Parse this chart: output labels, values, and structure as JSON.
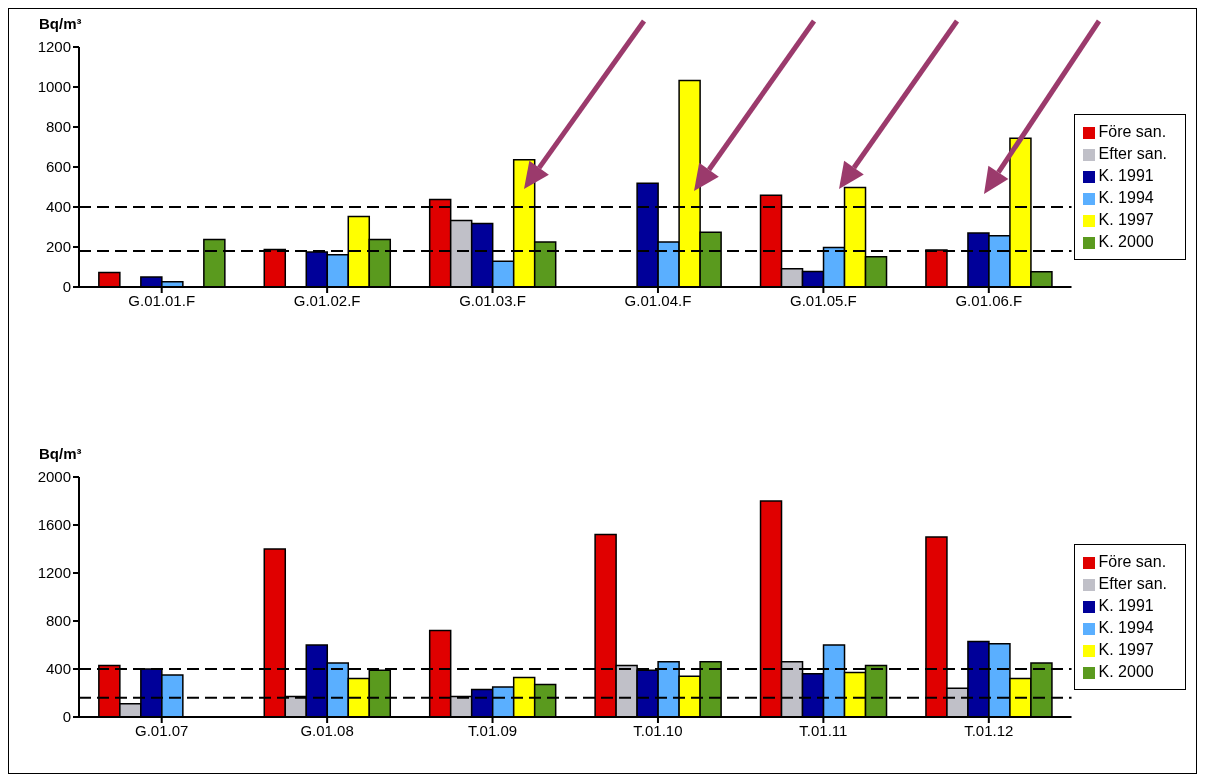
{
  "chart_data": [
    {
      "type": "bar",
      "ylabel": "Bq/m³",
      "categories": [
        "G.01.01.F",
        "G.01.02.F",
        "G.01.03.F",
        "G.01.04.F",
        "G.01.05.F",
        "G.01.06.F"
      ],
      "series": [
        {
          "name": "Före san.",
          "color": "#e00000",
          "values": [
            72,
            187,
            437,
            null,
            459,
            185
          ]
        },
        {
          "name": "Efter san.",
          "color": "#c0c0c8",
          "values": [
            null,
            null,
            332,
            null,
            91,
            null
          ]
        },
        {
          "name": "K. 1991",
          "color": "#000099",
          "values": [
            50,
            175,
            318,
            519,
            78,
            270
          ]
        },
        {
          "name": "K. 1994",
          "color": "#5aafff",
          "values": [
            26,
            161,
            129,
            225,
            197,
            256
          ]
        },
        {
          "name": "K. 1997",
          "color": "#ffff00",
          "values": [
            null,
            352,
            636,
            1032,
            497,
            744
          ]
        },
        {
          "name": "K. 2000",
          "color": "#5a9a1e",
          "values": [
            237,
            237,
            225,
            274,
            151,
            76
          ]
        }
      ],
      "ylim": [
        0,
        1200
      ],
      "yticks": [
        0,
        200,
        400,
        600,
        800,
        1000,
        1200
      ],
      "ref_lines": [
        {
          "axis": "y",
          "value": 400,
          "line_style": "dashed"
        },
        {
          "axis": "y",
          "value": 180,
          "line_style": "dashed"
        }
      ],
      "legend": "right"
    },
    {
      "type": "bar",
      "ylabel": "Bq/m³",
      "categories": [
        "G.01.07",
        "G.01.08",
        "T.01.09",
        "T.01.10",
        "T.01.11",
        "T.01.12"
      ],
      "series": [
        {
          "name": "Före san.",
          "color": "#e00000",
          "values": [
            430,
            1400,
            720,
            1520,
            1800,
            1500
          ]
        },
        {
          "name": "Efter san.",
          "color": "#c0c0c8",
          "values": [
            110,
            170,
            170,
            430,
            460,
            240
          ]
        },
        {
          "name": "K. 1991",
          "color": "#000099",
          "values": [
            400,
            600,
            230,
            390,
            360,
            630
          ]
        },
        {
          "name": "K. 1994",
          "color": "#5aafff",
          "values": [
            350,
            450,
            250,
            460,
            600,
            610
          ]
        },
        {
          "name": "K. 1997",
          "color": "#ffff00",
          "values": [
            null,
            320,
            330,
            340,
            370,
            320
          ]
        },
        {
          "name": "K. 2000",
          "color": "#5a9a1e",
          "values": [
            null,
            390,
            270,
            460,
            430,
            450
          ]
        }
      ],
      "ylim": [
        0,
        2000
      ],
      "yticks": [
        0,
        400,
        800,
        1200,
        1600,
        2000
      ],
      "ref_lines": [
        {
          "axis": "y",
          "value": 400,
          "line_style": "dashed"
        },
        {
          "axis": "y",
          "value": 160,
          "line_style": "dashed"
        }
      ],
      "legend": "right"
    }
  ]
}
